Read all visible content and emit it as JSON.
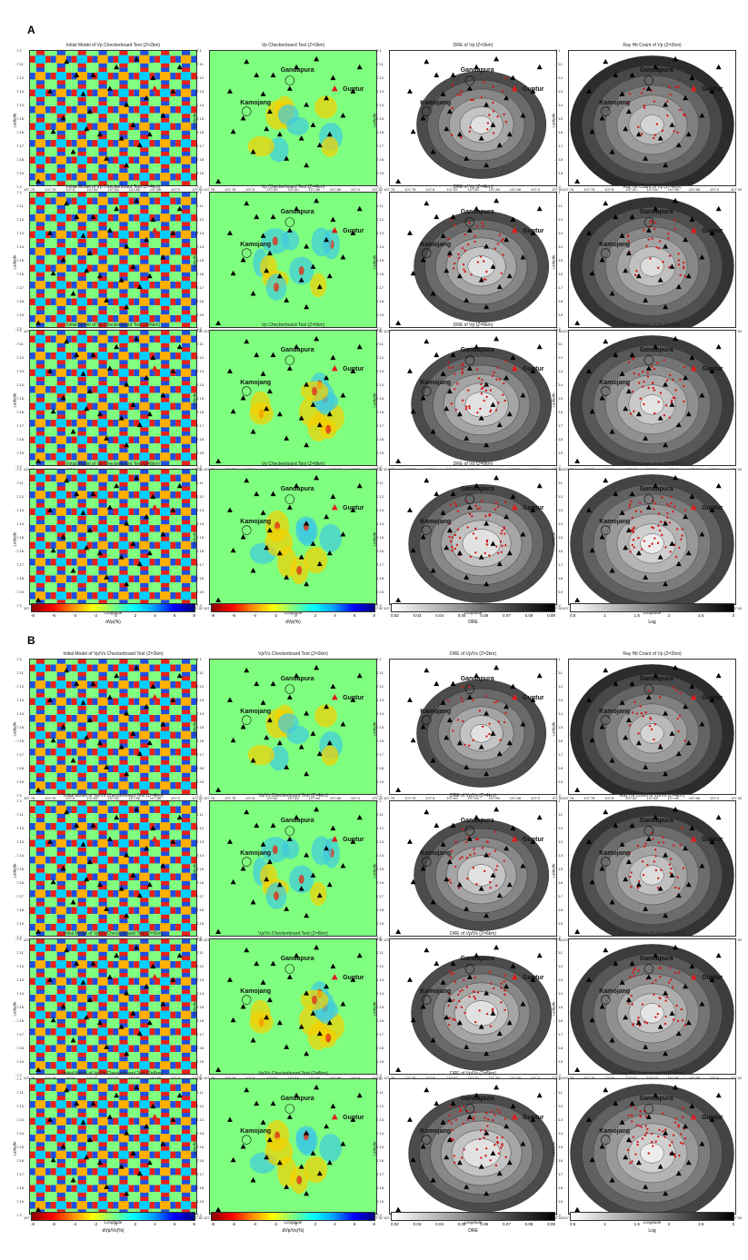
{
  "panel_letters": {
    "a": "A",
    "b": "B"
  },
  "axes": {
    "latitude_label": "Latitude",
    "longitude_label": "Longitude",
    "lat_ticks": [
      "-7.1",
      "-7.11",
      "-7.12",
      "-7.13",
      "-7.14",
      "-7.15",
      "-7.16",
      "-7.17",
      "-7.18",
      "-7.19",
      "-7.2"
    ],
    "lon_ticks": [
      "107.76",
      "107.78",
      "107.8",
      "107.82",
      "107.84",
      "107.86",
      "107.88",
      "107.9",
      "107.92"
    ]
  },
  "volcano_labels": {
    "gandapura": "Gandapura",
    "kamojang": "Kamojang",
    "guntur": "Guntur"
  },
  "section_a": {
    "rows": [
      {
        "titles": [
          "Initial Model of Vp Checkerboard Test (Z=2km)",
          "Vp Checkerboard Test (Z=2km)",
          "DRE of Vp (Z=2km)",
          "Ray Hit Count of Vp (Z=2km)"
        ]
      },
      {
        "titles": [
          "Initial Model of Vp Checkerboard Test (Z=4km)",
          "Vp Checkerboard Test (Z=4km)",
          "DRE of Vp (Z=4km)",
          "Ray Hit Count of Vp (Z=4km)"
        ]
      },
      {
        "titles": [
          "Initial Model of Vp Checkerboard Test (Z=6km)",
          "Vp Checkerboard Test (Z=6km)",
          "DRE of Vp (Z=6km)",
          "Ray Hit Count of Vp (Z=6km)"
        ]
      },
      {
        "titles": [
          "Initial Model of Vp Checkerboard Test (Z=8km)",
          "Vp Checkerboard Test (Z=8km)",
          "DRE of Vp (Z=8km)",
          "Ray Hit Count of Vp (Z=8km)"
        ]
      }
    ],
    "colorbars": [
      {
        "label": "dVp(%)",
        "ticks": [
          "-8",
          "-6",
          "-4",
          "-2",
          "0",
          "2",
          "4",
          "6",
          "8"
        ]
      },
      {
        "label": "dVp(%)",
        "ticks": [
          "-8",
          "-6",
          "-4",
          "-2",
          "0",
          "2",
          "4",
          "6",
          "8"
        ]
      },
      {
        "label": "DRE",
        "ticks": [
          "0.02",
          "0.03",
          "0.04",
          "0.05",
          "0.06",
          "0.07",
          "0.08",
          "0.09"
        ]
      },
      {
        "label": "Log",
        "ticks": [
          "0.5",
          "1",
          "1.5",
          "2",
          "2.5",
          "3"
        ]
      }
    ]
  },
  "section_b": {
    "rows": [
      {
        "titles": [
          "Initial Model of Vp/Vs Checkerboard Test (Z=2km)",
          "Vp/Vs Checkerboard Test (Z=2km)",
          "DRE of Vp/Vs (Z=2km)",
          "Ray Hit Count of Vp (Z=2km)"
        ]
      },
      {
        "titles": [
          "Initial Model of Vp/Vs Checkerboard Test (Z=4km)",
          "Vp/Vs Checkerboard Test (Z=4km)",
          "DRE of Vp/Vs (Z=4km)",
          "Ray Hit Count of Vp/Vs (Z=4km)"
        ]
      },
      {
        "titles": [
          "Initial Model of Vp/Vs Checkerboard Test (Z=6km)",
          "Vp/Vs Checkerboard Test (Z=6km)",
          "DRE of Vp/Vs (Z=6km)",
          "Ray Hit Count of Vp/Vs (Z=6km)"
        ]
      },
      {
        "titles": [
          "Initial Model of Vp/Vs Checkerboard Test (Z=8km)",
          "Vp/Vs Checkerboard Test (Z=8km)",
          "DRE of Vp/Vs (Z=8km)",
          "Ray Hit Count of Vp/Vs (Z=8km)"
        ]
      }
    ],
    "colorbars": [
      {
        "label": "dVp/Vs(%)",
        "ticks": [
          "-8",
          "-6",
          "-4",
          "-2",
          "0",
          "2",
          "4",
          "6",
          "8"
        ]
      },
      {
        "label": "dVp/Vs(%)",
        "ticks": [
          "-8",
          "-6",
          "-4",
          "-2",
          "0",
          "2",
          "4",
          "6",
          "8"
        ]
      },
      {
        "label": "DRE",
        "ticks": [
          "0.02",
          "0.03",
          "0.04",
          "0.05",
          "0.06",
          "0.07",
          "0.08",
          "0.09"
        ]
      },
      {
        "label": "Log",
        "ticks": [
          "0.5",
          "1",
          "1.5",
          "2",
          "2.5",
          "3"
        ]
      }
    ]
  },
  "colors": {
    "volcano_red": "#e31b1b",
    "station_black": "#000000",
    "event_red": "#d11a1a",
    "background_green": "#7fff7f"
  }
}
